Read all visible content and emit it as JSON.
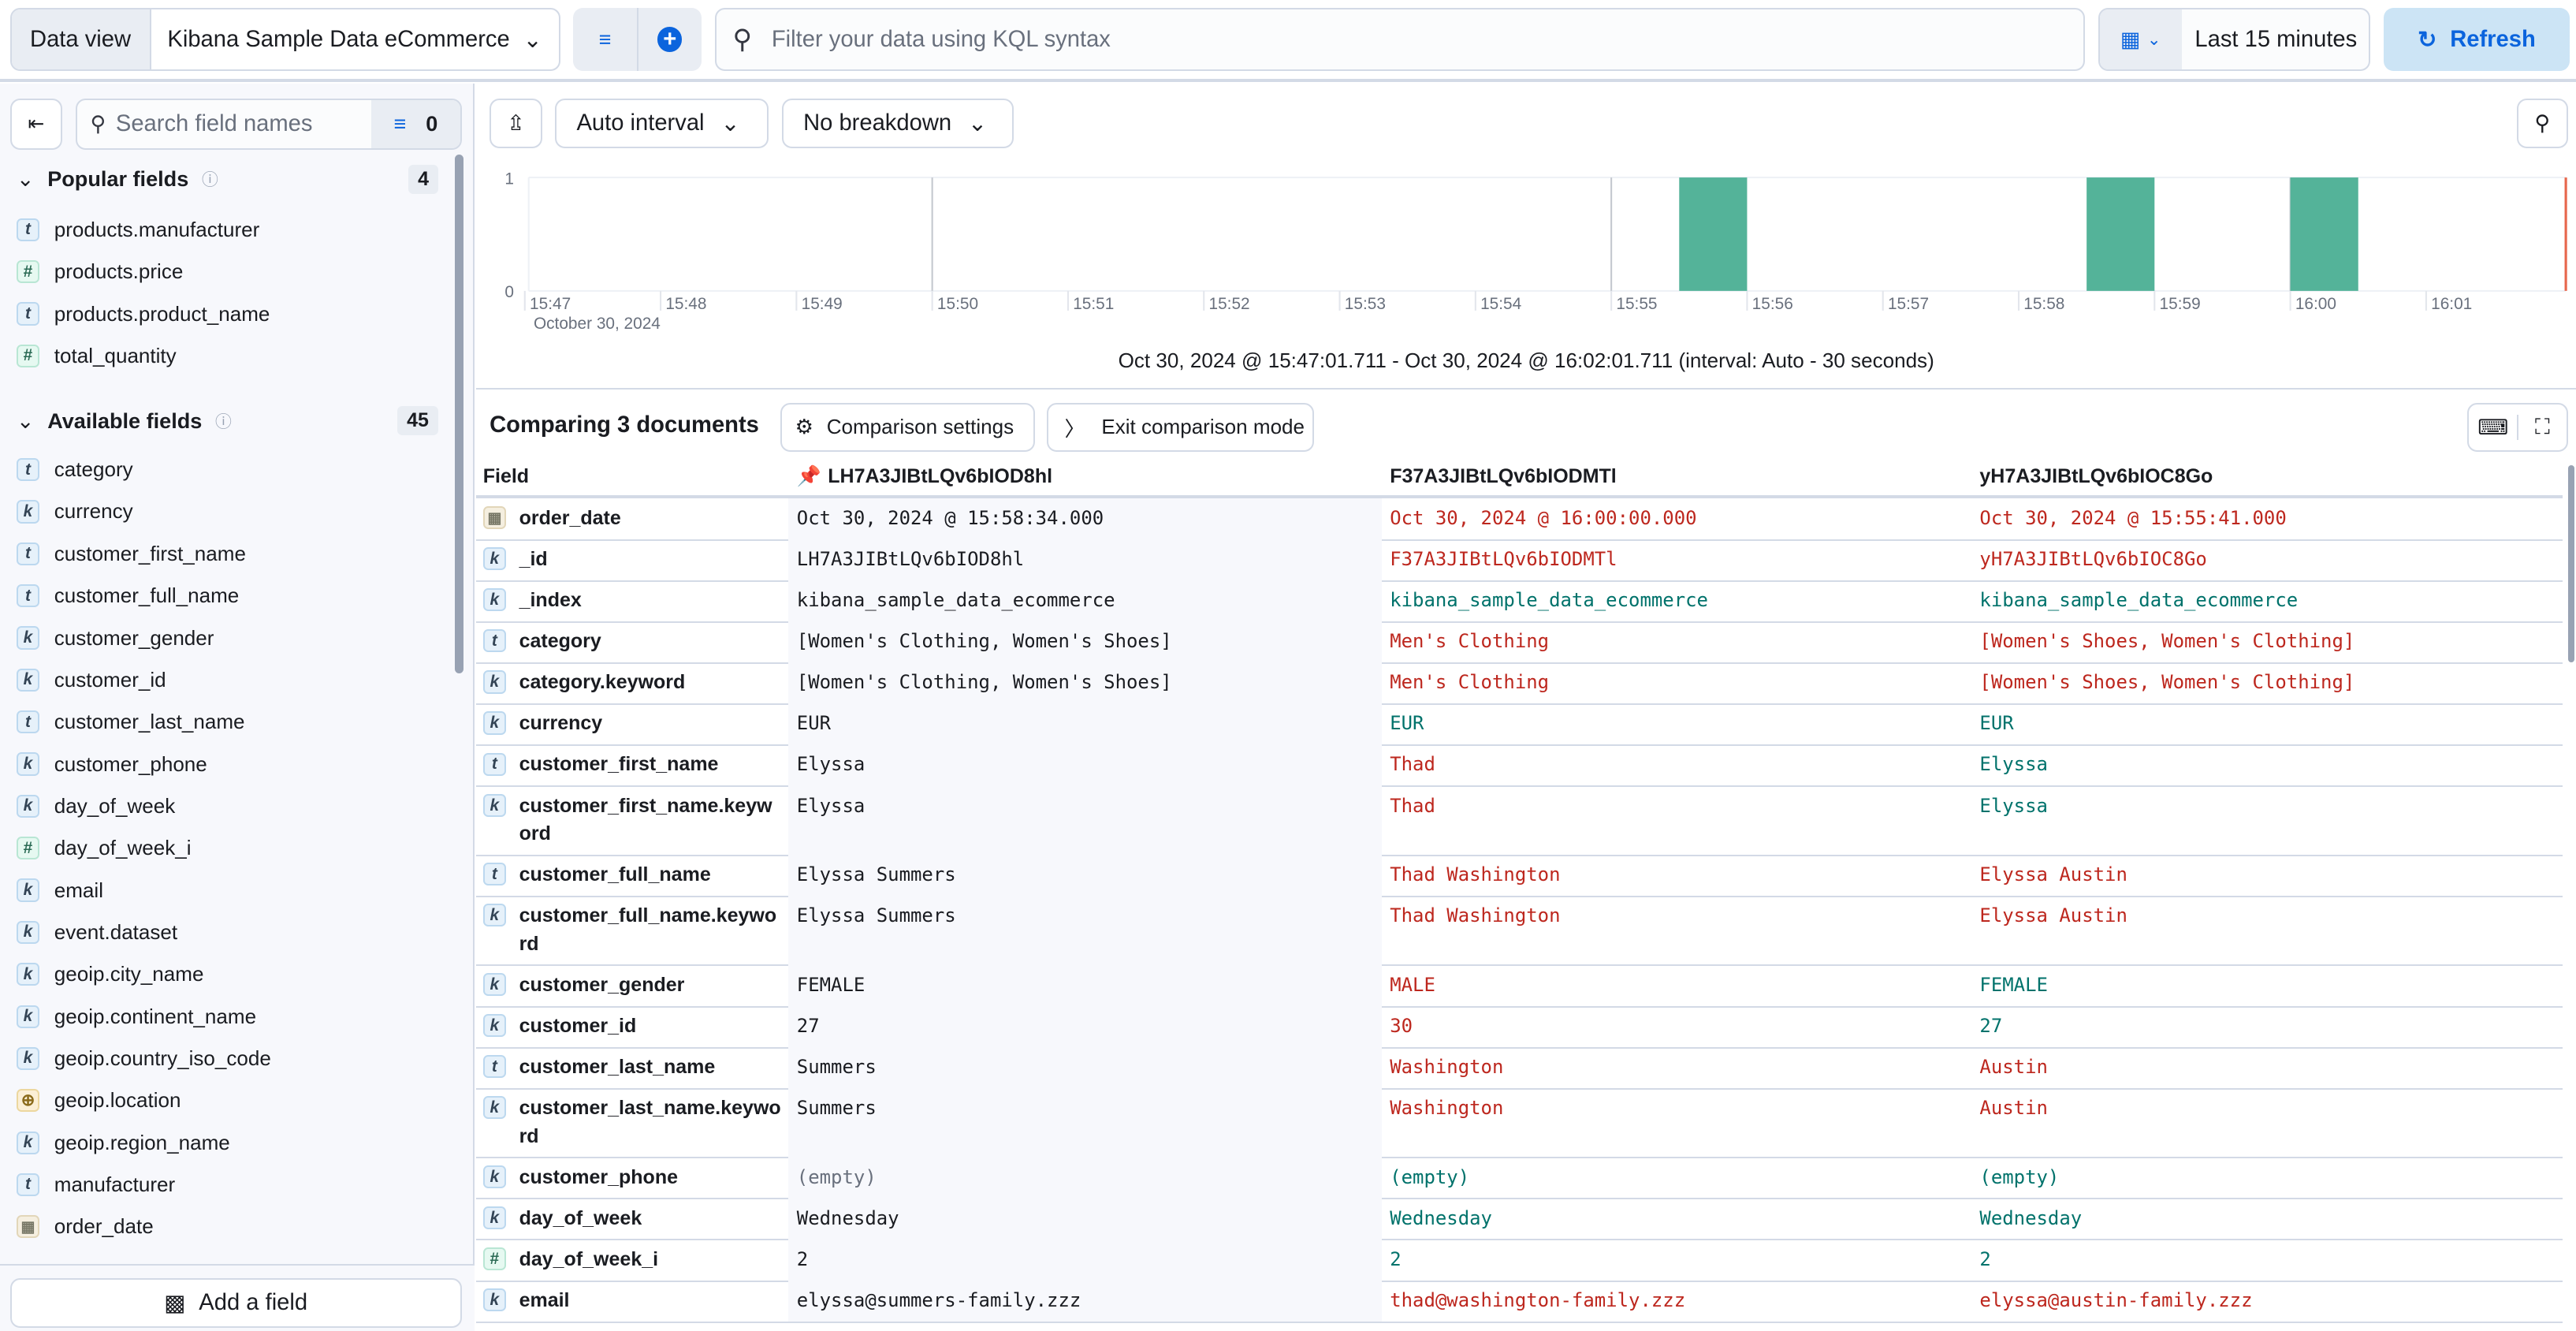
{
  "topbar": {
    "data_view_label": "Data view",
    "data_view_value": "Kibana Sample Data eCommerce",
    "query_placeholder": "Filter your data using KQL syntax",
    "time_range": "Last 15 minutes",
    "refresh_label": "Refresh"
  },
  "sidebar": {
    "search_placeholder": "Search field names",
    "filter_count": "0",
    "popular": {
      "title": "Popular fields",
      "count": "4",
      "items": [
        {
          "type": "t",
          "name": "products.manufacturer"
        },
        {
          "type": "n",
          "name": "products.price"
        },
        {
          "type": "t",
          "name": "products.product_name"
        },
        {
          "type": "n",
          "name": "total_quantity"
        }
      ]
    },
    "available": {
      "title": "Available fields",
      "count": "45",
      "items": [
        {
          "type": "t",
          "name": "category"
        },
        {
          "type": "k",
          "name": "currency"
        },
        {
          "type": "t",
          "name": "customer_first_name"
        },
        {
          "type": "t",
          "name": "customer_full_name"
        },
        {
          "type": "k",
          "name": "customer_gender"
        },
        {
          "type": "k",
          "name": "customer_id"
        },
        {
          "type": "t",
          "name": "customer_last_name"
        },
        {
          "type": "k",
          "name": "customer_phone"
        },
        {
          "type": "k",
          "name": "day_of_week"
        },
        {
          "type": "n",
          "name": "day_of_week_i"
        },
        {
          "type": "k",
          "name": "email"
        },
        {
          "type": "k",
          "name": "event.dataset"
        },
        {
          "type": "k",
          "name": "geoip.city_name"
        },
        {
          "type": "k",
          "name": "geoip.continent_name"
        },
        {
          "type": "k",
          "name": "geoip.country_iso_code"
        },
        {
          "type": "g",
          "name": "geoip.location"
        },
        {
          "type": "k",
          "name": "geoip.region_name"
        },
        {
          "type": "t",
          "name": "manufacturer"
        },
        {
          "type": "d",
          "name": "order_date"
        }
      ]
    },
    "add_field_label": "Add a field"
  },
  "toolbar": {
    "interval": "Auto interval",
    "breakdown": "No breakdown"
  },
  "chart_data": {
    "type": "bar",
    "x_ticks": [
      "15:47",
      "15:48",
      "15:49",
      "15:50",
      "15:51",
      "15:52",
      "15:53",
      "15:54",
      "15:55",
      "15:56",
      "15:57",
      "15:58",
      "15:59",
      "16:00",
      "16:01"
    ],
    "x_date_label": "October 30, 2024",
    "y_ticks": [
      "0",
      "1"
    ],
    "ylim": [
      0,
      1
    ],
    "xlim": [
      "15:47:01.711",
      "16:02:01.711"
    ],
    "bars": [
      {
        "x": "15:55:30",
        "value": 1
      },
      {
        "x": "15:58:30",
        "value": 1
      },
      {
        "x": "16:00:00",
        "value": 1
      }
    ],
    "bar_color": "#54b399",
    "caption": "Oct 30, 2024 @ 15:47:01.711 - Oct 30, 2024 @ 16:02:01.711 (interval: Auto - 30 seconds)"
  },
  "comparison": {
    "title": "Comparing 3 documents",
    "settings_label": "Comparison settings",
    "exit_label": "Exit comparison mode",
    "field_header": "Field",
    "doc_headers": [
      "LH7A3JIBtLQv6bIOD8hl",
      "F37A3JIBtLQv6bIODMTl",
      "yH7A3JIBtLQv6bIOC8Go"
    ],
    "rows": [
      {
        "type": "d",
        "field": "order_date",
        "values": [
          "Oct 30, 2024 @ 15:58:34.000",
          "Oct 30, 2024 @ 16:00:00.000",
          "Oct 30, 2024 @ 15:55:41.000"
        ],
        "status": [
          "diff",
          "diff"
        ]
      },
      {
        "type": "k",
        "field": "_id",
        "values": [
          "LH7A3JIBtLQv6bIOD8hl",
          "F37A3JIBtLQv6bIODMTl",
          "yH7A3JIBtLQv6bIOC8Go"
        ],
        "status": [
          "diff",
          "diff"
        ]
      },
      {
        "type": "k",
        "field": "_index",
        "values": [
          "kibana_sample_data_ecommerce",
          "kibana_sample_data_ecommerce",
          "kibana_sample_data_ecommerce"
        ],
        "status": [
          "same",
          "same"
        ]
      },
      {
        "type": "t",
        "field": "category",
        "values": [
          "[Women's Clothing, Women's Shoes]",
          "Men's Clothing",
          "[Women's Shoes, Women's Clothing]"
        ],
        "status": [
          "diff",
          "diff"
        ]
      },
      {
        "type": "k",
        "field": "category.keyword",
        "values": [
          "[Women's Clothing, Women's Shoes]",
          "Men's Clothing",
          "[Women's Shoes, Women's Clothing]"
        ],
        "status": [
          "diff",
          "diff"
        ]
      },
      {
        "type": "k",
        "field": "currency",
        "values": [
          "EUR",
          "EUR",
          "EUR"
        ],
        "status": [
          "same",
          "same"
        ]
      },
      {
        "type": "t",
        "field": "customer_first_name",
        "values": [
          "Elyssa",
          "Thad",
          "Elyssa"
        ],
        "status": [
          "diff",
          "same"
        ]
      },
      {
        "type": "k",
        "field": "customer_first_name.keyword",
        "values": [
          "Elyssa",
          "Thad",
          "Elyssa"
        ],
        "status": [
          "diff",
          "same"
        ],
        "tall": true
      },
      {
        "type": "t",
        "field": "customer_full_name",
        "values": [
          "Elyssa Summers",
          "Thad Washington",
          "Elyssa Austin"
        ],
        "status": [
          "diff",
          "diff"
        ]
      },
      {
        "type": "k",
        "field": "customer_full_name.keyword",
        "values": [
          "Elyssa Summers",
          "Thad Washington",
          "Elyssa Austin"
        ],
        "status": [
          "diff",
          "diff"
        ],
        "tall": true
      },
      {
        "type": "k",
        "field": "customer_gender",
        "values": [
          "FEMALE",
          "MALE",
          "FEMALE"
        ],
        "status": [
          "diff",
          "same"
        ]
      },
      {
        "type": "k",
        "field": "customer_id",
        "values": [
          "27",
          "30",
          "27"
        ],
        "status": [
          "diff",
          "same"
        ]
      },
      {
        "type": "t",
        "field": "customer_last_name",
        "values": [
          "Summers",
          "Washington",
          "Austin"
        ],
        "status": [
          "diff",
          "diff"
        ]
      },
      {
        "type": "k",
        "field": "customer_last_name.keyword",
        "values": [
          "Summers",
          "Washington",
          "Austin"
        ],
        "status": [
          "diff",
          "diff"
        ],
        "tall": true
      },
      {
        "type": "k",
        "field": "customer_phone",
        "values": [
          "(empty)",
          "(empty)",
          "(empty)"
        ],
        "status": [
          "same",
          "same"
        ],
        "base_empty": true
      },
      {
        "type": "k",
        "field": "day_of_week",
        "values": [
          "Wednesday",
          "Wednesday",
          "Wednesday"
        ],
        "status": [
          "same",
          "same"
        ]
      },
      {
        "type": "n",
        "field": "day_of_week_i",
        "values": [
          "2",
          "2",
          "2"
        ],
        "status": [
          "same",
          "same"
        ]
      },
      {
        "type": "k",
        "field": "email",
        "values": [
          "elyssa@summers-family.zzz",
          "thad@washington-family.zzz",
          "elyssa@austin-family.zzz"
        ],
        "status": [
          "diff",
          "diff"
        ]
      }
    ]
  }
}
